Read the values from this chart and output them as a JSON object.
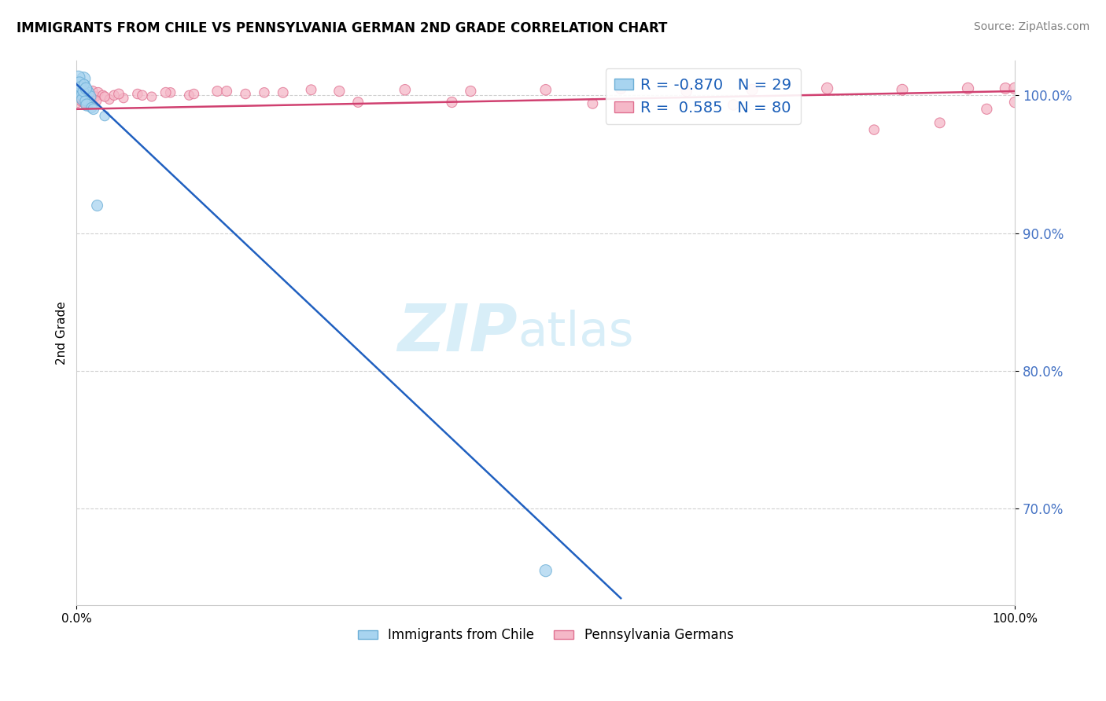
{
  "title": "IMMIGRANTS FROM CHILE VS PENNSYLVANIA GERMAN 2ND GRADE CORRELATION CHART",
  "source": "Source: ZipAtlas.com",
  "ylabel": "2nd Grade",
  "xlim": [
    0.0,
    100.0
  ],
  "ylim": [
    63.0,
    102.5
  ],
  "ytick_vals": [
    70.0,
    80.0,
    90.0,
    100.0
  ],
  "ytick_labels": [
    "70.0%",
    "80.0%",
    "90.0%",
    "100.0%"
  ],
  "legend_r_blue": "-0.870",
  "legend_n_blue": "29",
  "legend_r_pink": "0.585",
  "legend_n_pink": "80",
  "blue_label": "Immigrants from Chile",
  "pink_label": "Pennsylvania Germans",
  "blue_color": "#a8d4f0",
  "blue_edge": "#6baed6",
  "pink_color": "#f5b8c8",
  "pink_edge": "#e07090",
  "blue_line_color": "#2060c0",
  "pink_line_color": "#d04070",
  "watermark_zip": "ZIP",
  "watermark_atlas": "atlas",
  "watermark_color": "#d8eef8",
  "blue_line_x0": 0.0,
  "blue_line_y0": 100.8,
  "blue_line_x1": 58.0,
  "blue_line_y1": 63.5,
  "pink_line_x0": 0.0,
  "pink_line_y0": 99.0,
  "pink_line_x1": 100.0,
  "pink_line_y1": 100.3,
  "blue_scatter_x": [
    0.15,
    0.25,
    0.35,
    0.45,
    0.55,
    0.65,
    0.75,
    0.85,
    0.95,
    1.05,
    1.15,
    1.25,
    1.35,
    1.45,
    0.2,
    0.3,
    0.4,
    0.5,
    0.6,
    0.7,
    0.8,
    0.9,
    1.0,
    1.1,
    1.6,
    2.2,
    3.0,
    50.0,
    1.8
  ],
  "blue_scatter_y": [
    100.5,
    100.8,
    101.0,
    100.3,
    100.6,
    100.0,
    101.2,
    100.7,
    100.1,
    99.8,
    100.4,
    99.5,
    100.2,
    99.9,
    101.3,
    100.9,
    100.6,
    100.0,
    99.7,
    100.3,
    100.8,
    99.6,
    100.5,
    99.3,
    99.1,
    92.0,
    98.5,
    65.5,
    99.0
  ],
  "blue_sizes": [
    120,
    90,
    70,
    100,
    130,
    85,
    150,
    110,
    95,
    120,
    90,
    100,
    85,
    110,
    140,
    120,
    100,
    90,
    105,
    95,
    85,
    80,
    110,
    120,
    90,
    100,
    80,
    120,
    95
  ],
  "pink_scatter_x": [
    0.1,
    0.2,
    0.3,
    0.4,
    0.5,
    0.6,
    0.7,
    0.8,
    0.9,
    1.0,
    1.1,
    1.2,
    1.3,
    1.4,
    1.5,
    1.7,
    2.0,
    2.3,
    2.8,
    3.5,
    0.15,
    0.25,
    0.35,
    0.45,
    0.55,
    0.65,
    0.75,
    0.85,
    0.95,
    1.05,
    1.15,
    1.25,
    1.35,
    4.0,
    5.0,
    6.5,
    8.0,
    10.0,
    12.0,
    15.0,
    18.0,
    22.0,
    28.0,
    35.0,
    42.0,
    50.0,
    58.0,
    65.0,
    72.0,
    80.0,
    88.0,
    95.0,
    99.0,
    100.0,
    30.0,
    40.0,
    55.0,
    70.0,
    85.0,
    92.0,
    97.0,
    100.0,
    0.18,
    0.28,
    0.38,
    0.48,
    0.58,
    0.68,
    0.78,
    0.88,
    1.6,
    2.1,
    3.0,
    4.5,
    7.0,
    9.5,
    12.5,
    16.0,
    20.0,
    25.0
  ],
  "pink_scatter_y": [
    99.5,
    100.2,
    99.8,
    100.4,
    99.6,
    100.1,
    99.7,
    100.3,
    99.4,
    100.0,
    99.3,
    100.2,
    99.6,
    100.1,
    99.8,
    100.3,
    99.9,
    100.2,
    100.0,
    99.7,
    100.5,
    100.1,
    99.8,
    100.3,
    99.7,
    100.2,
    99.9,
    100.4,
    100.0,
    99.6,
    100.3,
    99.8,
    100.1,
    100.0,
    99.8,
    100.1,
    99.9,
    100.2,
    100.0,
    100.3,
    100.1,
    100.2,
    100.3,
    100.4,
    100.3,
    100.4,
    100.5,
    100.3,
    100.4,
    100.5,
    100.4,
    100.5,
    100.5,
    100.5,
    99.5,
    99.5,
    99.4,
    99.3,
    97.5,
    98.0,
    99.0,
    99.5,
    100.3,
    99.9,
    100.1,
    99.8,
    100.2,
    99.7,
    100.0,
    99.5,
    99.8,
    99.6,
    99.9,
    100.1,
    100.0,
    100.2,
    100.1,
    100.3,
    100.2,
    100.4
  ],
  "pink_sizes": [
    90,
    100,
    80,
    110,
    90,
    100,
    85,
    95,
    80,
    100,
    85,
    90,
    80,
    95,
    85,
    90,
    80,
    85,
    80,
    75,
    95,
    100,
    85,
    90,
    80,
    95,
    85,
    100,
    90,
    85,
    95,
    80,
    85,
    80,
    75,
    80,
    75,
    80,
    75,
    85,
    80,
    85,
    90,
    95,
    90,
    95,
    100,
    95,
    100,
    105,
    100,
    105,
    100,
    110,
    85,
    90,
    85,
    90,
    80,
    85,
    90,
    95,
    90,
    85,
    90,
    85,
    95,
    90,
    95,
    85,
    80,
    85,
    80,
    85,
    80,
    85,
    80,
    85,
    80,
    85
  ]
}
